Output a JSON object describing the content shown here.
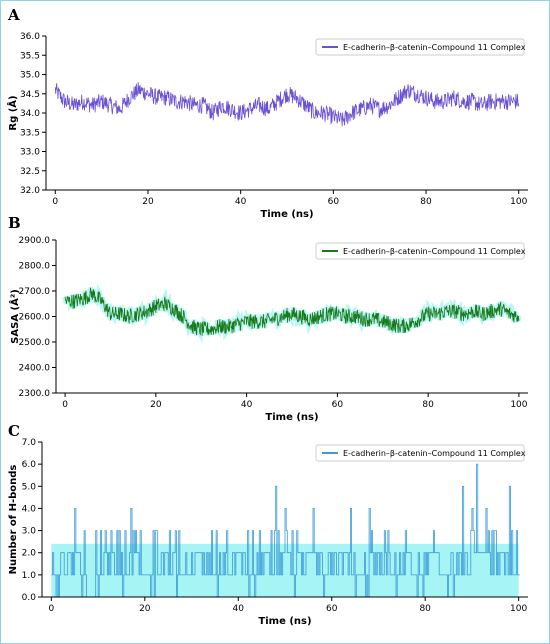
{
  "chart_data": [
    {
      "panel": "A",
      "type": "line",
      "xlabel": "Time (ns)",
      "ylabel": "Rg (Å)",
      "xlim": [
        -2,
        102
      ],
      "ylim": [
        32.0,
        36.0
      ],
      "xticks": [
        "0",
        "20",
        "40",
        "60",
        "80",
        "100"
      ],
      "yticks": [
        "32.0",
        "32.5",
        "33.0",
        "33.5",
        "34.0",
        "34.5",
        "35.0",
        "35.5",
        "36.0"
      ],
      "legend_position": "top-right",
      "series": [
        {
          "name": "E-cadherin–β-catenin–Compound 11 Complex",
          "color": "#6a51d4",
          "x": [
            0,
            2,
            4,
            6,
            8,
            10,
            12,
            14,
            16,
            18,
            20,
            22,
            24,
            26,
            28,
            30,
            32,
            34,
            36,
            38,
            40,
            42,
            44,
            46,
            48,
            50,
            52,
            54,
            56,
            58,
            60,
            62,
            64,
            66,
            68,
            70,
            72,
            74,
            76,
            78,
            80,
            82,
            84,
            86,
            88,
            90,
            92,
            94,
            96,
            98,
            100
          ],
          "y": [
            34.6,
            34.3,
            34.2,
            34.3,
            34.2,
            34.3,
            34.2,
            34.1,
            34.4,
            34.6,
            34.5,
            34.4,
            34.4,
            34.3,
            34.3,
            34.2,
            34.2,
            34.0,
            34.2,
            34.1,
            34.0,
            34.1,
            34.2,
            34.1,
            34.3,
            34.5,
            34.4,
            34.2,
            34.0,
            34.0,
            33.9,
            33.8,
            34.0,
            34.1,
            34.2,
            34.1,
            34.2,
            34.4,
            34.6,
            34.5,
            34.4,
            34.3,
            34.3,
            34.4,
            34.3,
            34.3,
            34.2,
            34.3,
            34.3,
            34.3,
            34.3
          ],
          "fluctuation": 0.22
        }
      ]
    },
    {
      "panel": "B",
      "type": "line",
      "xlabel": "Time (ns)",
      "ylabel": "SASA (Å²)",
      "xlim": [
        -2,
        102
      ],
      "ylim": [
        2300.0,
        2900.0
      ],
      "xticks": [
        "0",
        "20",
        "40",
        "60",
        "80",
        "100"
      ],
      "yticks": [
        "2300.0",
        "2400.0",
        "2500.0",
        "2600.0",
        "2700.0",
        "2800.0",
        "2900.0"
      ],
      "legend_position": "top-right",
      "series": [
        {
          "name": "E-cadherin–β-catenin–Compound 11 Complex",
          "color": "#1a7a1a",
          "x": [
            0,
            2,
            4,
            6,
            8,
            10,
            12,
            14,
            16,
            18,
            20,
            22,
            24,
            26,
            28,
            30,
            32,
            34,
            36,
            38,
            40,
            42,
            44,
            46,
            48,
            50,
            52,
            54,
            56,
            58,
            60,
            62,
            64,
            66,
            68,
            70,
            72,
            74,
            76,
            78,
            80,
            82,
            84,
            86,
            88,
            90,
            92,
            94,
            96,
            98,
            100
          ],
          "y": [
            2660,
            2660,
            2670,
            2690,
            2660,
            2610,
            2610,
            2600,
            2610,
            2620,
            2640,
            2650,
            2630,
            2600,
            2560,
            2550,
            2550,
            2560,
            2560,
            2570,
            2580,
            2580,
            2580,
            2590,
            2600,
            2610,
            2600,
            2590,
            2600,
            2610,
            2610,
            2600,
            2600,
            2590,
            2590,
            2580,
            2570,
            2560,
            2570,
            2590,
            2610,
            2610,
            2620,
            2620,
            2610,
            2620,
            2610,
            2620,
            2630,
            2610,
            2600
          ],
          "fluctuation": 30
        }
      ]
    },
    {
      "panel": "C",
      "type": "line",
      "xlabel": "Time (ns)",
      "ylabel": "Number of H-bonds",
      "xlim": [
        -2,
        102
      ],
      "ylim": [
        0.0,
        7.0
      ],
      "xticks": [
        "0",
        "20",
        "40",
        "60",
        "80",
        "100"
      ],
      "yticks": [
        "0.0",
        "1.0",
        "2.0",
        "3.0",
        "4.0",
        "5.0",
        "6.0",
        "7.0"
      ],
      "legend_position": "top-right",
      "series": [
        {
          "name": "E-cadherin–β-catenin–Compound 11 Complex",
          "color": "#3a9bd9",
          "x": [
            0,
            2,
            4,
            6,
            8,
            10,
            12,
            14,
            16,
            18,
            20,
            22,
            24,
            26,
            28,
            30,
            32,
            34,
            36,
            38,
            40,
            42,
            44,
            46,
            48,
            50,
            52,
            54,
            56,
            58,
            60,
            62,
            64,
            66,
            68,
            70,
            72,
            74,
            76,
            78,
            80,
            82,
            84,
            86,
            88,
            90,
            92,
            94,
            96,
            98,
            100
          ],
          "y": [
            1,
            1,
            2,
            1,
            0,
            1,
            2,
            1,
            1,
            2,
            1,
            1,
            2,
            1,
            1,
            1,
            2,
            1,
            1,
            1,
            2,
            1,
            1,
            2,
            1,
            2,
            1,
            1,
            2,
            1,
            1,
            2,
            1,
            1,
            1,
            2,
            1,
            1,
            2,
            1,
            1,
            2,
            1,
            1,
            2,
            1,
            6,
            1,
            2,
            1,
            1
          ],
          "peaks": [
            [
              5,
              4
            ],
            [
              14,
              3
            ],
            [
              17,
              4
            ],
            [
              42,
              3
            ],
            [
              48,
              5
            ],
            [
              50,
              4
            ],
            [
              56,
              4
            ],
            [
              64,
              4
            ],
            [
              68,
              4
            ],
            [
              88,
              5
            ],
            [
              90,
              4
            ],
            [
              91,
              6
            ],
            [
              93,
              4
            ],
            [
              98,
              5
            ]
          ]
        }
      ]
    }
  ]
}
